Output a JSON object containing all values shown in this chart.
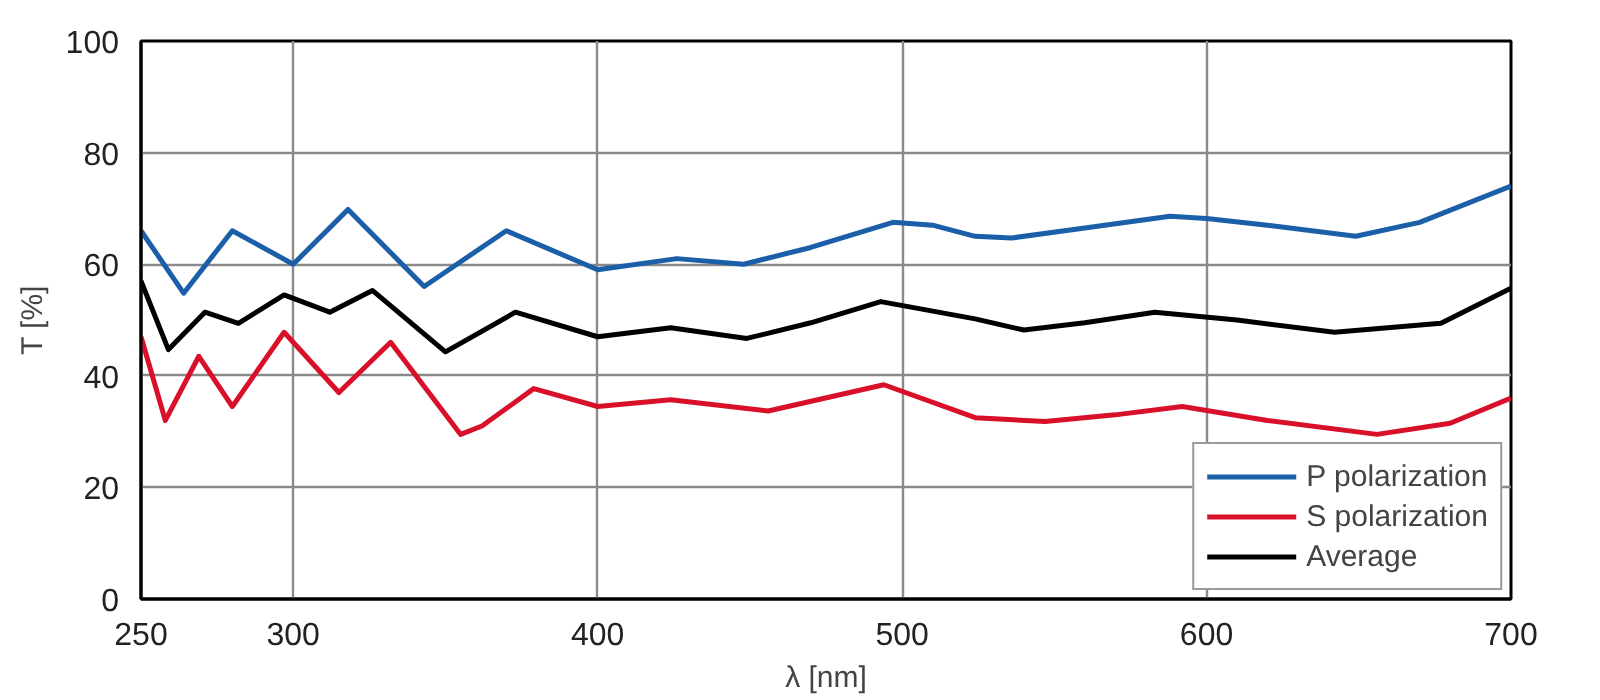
{
  "chart_data": {
    "type": "line",
    "xlabel": "λ [nm]",
    "ylabel": "T [%]",
    "xlim": [
      250,
      700
    ],
    "ylim": [
      0,
      100
    ],
    "xticks": [
      250,
      300,
      400,
      500,
      600,
      700
    ],
    "yticks": [
      0,
      20,
      40,
      60,
      80,
      100
    ],
    "grid": true,
    "legend": "bottom right",
    "line_style": "solid",
    "marker": "none",
    "series": [
      {
        "name": "P polarization",
        "color": "#1a5fa8",
        "x": [
          250,
          264,
          280,
          300,
          318,
          343,
          370,
          400,
          426,
          448,
          470,
          497,
          510,
          524,
          536,
          560,
          588,
          600,
          620,
          649,
          670,
          700
        ],
        "values": [
          66,
          54.8,
          66,
          60,
          69.8,
          56,
          66,
          59,
          61,
          60,
          63,
          67.5,
          67,
          65,
          64.7,
          66.5,
          68.6,
          68.2,
          67,
          65,
          67.5,
          74
        ]
      },
      {
        "name": "S polarization",
        "color": "#d9102a",
        "x": [
          250,
          258,
          269,
          280,
          297,
          315,
          332,
          355,
          362,
          379,
          400,
          424,
          456,
          494,
          524,
          547,
          570,
          592,
          620,
          656,
          680,
          700
        ],
        "values": [
          47,
          32,
          43.5,
          34.5,
          47.8,
          37,
          46,
          29.5,
          31,
          37.7,
          34.5,
          35.7,
          33.7,
          38.4,
          32.5,
          31.8,
          33,
          34.5,
          32,
          29.5,
          31.5,
          36
        ]
      },
      {
        "name": "Average",
        "color": "#000000",
        "x": [
          250,
          259,
          271,
          282,
          297,
          312,
          326,
          350,
          373,
          400,
          424,
          449,
          470,
          493,
          524,
          540,
          560,
          583,
          610,
          642,
          677,
          700
        ],
        "values": [
          57,
          44.7,
          51.4,
          49.4,
          54.5,
          51.4,
          55.3,
          44.3,
          51.4,
          47,
          48.6,
          46.7,
          49.5,
          53.3,
          50.2,
          48.2,
          49.5,
          51.4,
          50,
          47.8,
          49.4,
          55.7
        ]
      }
    ]
  }
}
